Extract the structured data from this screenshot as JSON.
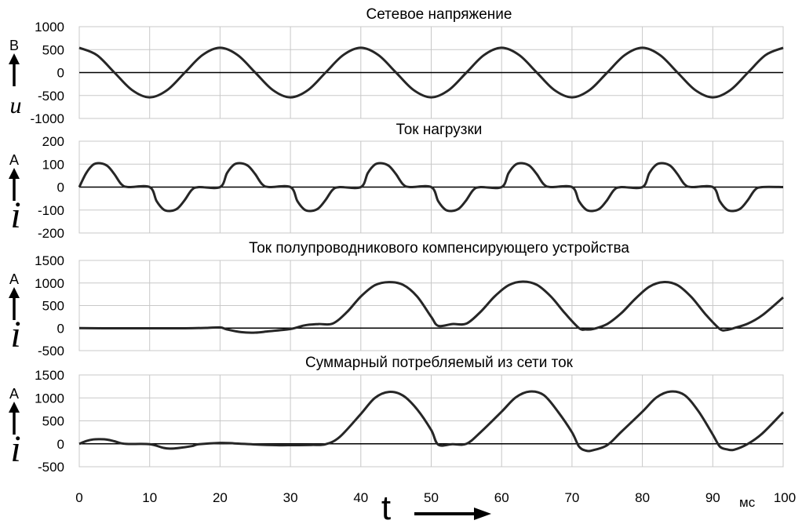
{
  "chart_data": [
    {
      "type": "line",
      "title": "Сетевое напряжение",
      "unit_label": "В",
      "symbol_label": "u",
      "ylim": [
        -1000,
        1000
      ],
      "yticks": [
        "1000",
        "500",
        "0",
        "-500",
        "-1000"
      ],
      "xlim": [
        0,
        100
      ],
      "grid": true,
      "series": [
        {
          "x": [
            0,
            2.5,
            5,
            7.5,
            10,
            12.5,
            15,
            17.5,
            20,
            22.5,
            25,
            27.5,
            30,
            32.5,
            35,
            37.5,
            40,
            42.5,
            45,
            47.5,
            50,
            52.5,
            55,
            57.5,
            60,
            62.5,
            65,
            67.5,
            70,
            72.5,
            75,
            77.5,
            80,
            82.5,
            85,
            87.5,
            90,
            92.5,
            95,
            97.5,
            100
          ],
          "y": [
            540,
            382,
            0,
            -382,
            -540,
            -382,
            0,
            382,
            540,
            382,
            0,
            -382,
            -540,
            -382,
            0,
            382,
            540,
            382,
            0,
            -382,
            -540,
            -382,
            0,
            382,
            540,
            382,
            0,
            -382,
            -540,
            -382,
            0,
            382,
            540,
            382,
            0,
            -382,
            -540,
            -382,
            0,
            382,
            540
          ]
        }
      ]
    },
    {
      "type": "line",
      "title": "Ток нагрузки",
      "unit_label": "А",
      "symbol_label": "i",
      "ylim": [
        -200,
        200
      ],
      "yticks": [
        "200",
        "100",
        "0",
        "-100",
        "-200"
      ],
      "xlim": [
        0,
        100
      ],
      "grid": true,
      "series": [
        {
          "x": [
            0,
            1,
            2,
            3,
            4,
            5,
            6,
            7,
            10,
            11,
            12,
            13,
            14,
            15,
            16,
            17,
            20,
            21,
            22,
            23,
            24,
            25,
            26,
            27,
            30,
            31,
            32,
            33,
            34,
            35,
            36,
            37,
            40,
            41,
            42,
            43,
            44,
            45,
            46,
            47,
            50,
            51,
            52,
            53,
            54,
            55,
            56,
            57,
            60,
            61,
            62,
            63,
            64,
            65,
            66,
            67,
            70,
            71,
            72,
            73,
            74,
            75,
            76,
            77,
            80,
            81,
            82,
            83,
            84,
            85,
            86,
            87,
            90,
            91,
            92,
            93,
            94,
            95,
            96,
            97,
            100
          ],
          "y": [
            0,
            62,
            98,
            104,
            92,
            56,
            12,
            0,
            0,
            -62,
            -98,
            -104,
            -92,
            -56,
            -12,
            0,
            0,
            62,
            98,
            104,
            92,
            56,
            12,
            0,
            0,
            -62,
            -98,
            -104,
            -92,
            -56,
            -12,
            0,
            0,
            62,
            98,
            104,
            92,
            56,
            12,
            0,
            0,
            -62,
            -98,
            -104,
            -92,
            -56,
            -12,
            0,
            0,
            62,
            98,
            104,
            92,
            56,
            12,
            0,
            0,
            -62,
            -98,
            -104,
            -92,
            -56,
            -12,
            0,
            0,
            62,
            98,
            104,
            92,
            56,
            12,
            0,
            0,
            -62,
            -98,
            -104,
            -92,
            -56,
            -12,
            0,
            0
          ]
        }
      ]
    },
    {
      "type": "line",
      "title": "Ток полупроводникового компенсирующего устройства",
      "unit_label": "А",
      "symbol_label": "i",
      "ylim": [
        -500,
        1500
      ],
      "yticks": [
        "1500",
        "1000",
        "500",
        "0",
        "-500"
      ],
      "xlim": [
        0,
        100
      ],
      "grid": true,
      "series": [
        {
          "x": [
            0,
            5,
            10,
            15,
            18,
            20,
            21,
            23,
            25,
            27,
            30,
            32,
            34,
            36,
            38,
            40,
            42,
            44,
            46,
            48,
            50,
            51,
            53,
            55,
            57,
            59,
            61,
            63,
            65,
            67,
            69,
            71,
            72,
            73,
            75,
            77,
            79,
            81,
            83,
            85,
            87,
            89,
            91,
            92,
            93,
            95,
            97,
            100
          ],
          "y": [
            0,
            -5,
            -5,
            -5,
            5,
            15,
            -30,
            -90,
            -100,
            -70,
            -20,
            60,
            90,
            100,
            350,
            700,
            950,
            1020,
            960,
            700,
            250,
            50,
            90,
            100,
            360,
            700,
            950,
            1030,
            960,
            700,
            330,
            0,
            -30,
            -20,
            90,
            330,
            650,
            920,
            1020,
            950,
            680,
            300,
            -20,
            -40,
            0,
            100,
            280,
            680
          ]
        }
      ]
    },
    {
      "type": "line",
      "title": "Суммарный потребляемый из сети ток",
      "unit_label": "А",
      "symbol_label": "i",
      "ylim": [
        -500,
        1500
      ],
      "yticks": [
        "1500",
        "1000",
        "500",
        "0",
        "-500"
      ],
      "xlim": [
        0,
        100
      ],
      "xticks": [
        "0",
        "10",
        "20",
        "30",
        "40",
        "50",
        "60",
        "70",
        "80",
        "90",
        "100"
      ],
      "xunit": "мс",
      "xlabel": "t",
      "grid": true,
      "series": [
        {
          "x": [
            0,
            1,
            2,
            3,
            4,
            5,
            6,
            7,
            10,
            12,
            13,
            14,
            16,
            17,
            20,
            22,
            25,
            28,
            30,
            33,
            35,
            37,
            40,
            42,
            44,
            46,
            48,
            50,
            51,
            53,
            55,
            57,
            60,
            62,
            64,
            66,
            68,
            70,
            71,
            72,
            73,
            75,
            77,
            80,
            82,
            84,
            86,
            88,
            90,
            91,
            92,
            93,
            95,
            97,
            100
          ],
          "y": [
            0,
            60,
            95,
            100,
            90,
            55,
            10,
            -5,
            -10,
            -90,
            -105,
            -95,
            -50,
            -10,
            20,
            10,
            -15,
            -30,
            -30,
            -25,
            -10,
            150,
            650,
            1000,
            1130,
            1050,
            750,
            300,
            -20,
            -10,
            0,
            250,
            700,
            1010,
            1140,
            1060,
            700,
            250,
            -60,
            -150,
            -140,
            -30,
            260,
            700,
            1010,
            1140,
            1060,
            700,
            200,
            -60,
            -120,
            -130,
            0,
            220,
            690
          ]
        }
      ]
    }
  ]
}
